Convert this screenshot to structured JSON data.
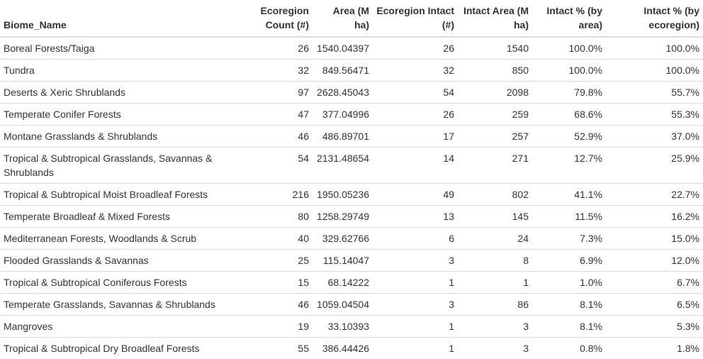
{
  "table": {
    "headers": [
      "Biome_Name",
      "Ecoregion Count (#)",
      "Area (M ha)",
      "Ecoregion Intact (#)",
      "Intact Area (M ha)",
      "Intact % (by area)",
      "Intact % (by ecoregion)"
    ],
    "rows": [
      [
        "Boreal Forests/Taiga",
        "26",
        "1540.04397",
        "26",
        "1540",
        "100.0%",
        "100.0%"
      ],
      [
        "Tundra",
        "32",
        "849.56471",
        "32",
        "850",
        "100.0%",
        "100.0%"
      ],
      [
        "Deserts & Xeric Shrublands",
        "97",
        "2628.45043",
        "54",
        "2098",
        "79.8%",
        "55.7%"
      ],
      [
        "Temperate Conifer Forests",
        "47",
        "377.04996",
        "26",
        "259",
        "68.6%",
        "55.3%"
      ],
      [
        "Montane Grasslands & Shrublands",
        "46",
        "486.89701",
        "17",
        "257",
        "52.9%",
        "37.0%"
      ],
      [
        "Tropical & Subtropical Grasslands, Savannas & Shrublands",
        "54",
        "2131.48654",
        "14",
        "271",
        "12.7%",
        "25.9%"
      ],
      [
        "Tropical & Subtropical Moist Broadleaf Forests",
        "216",
        "1950.05236",
        "49",
        "802",
        "41.1%",
        "22.7%"
      ],
      [
        "Temperate Broadleaf & Mixed Forests",
        "80",
        "1258.29749",
        "13",
        "145",
        "11.5%",
        "16.2%"
      ],
      [
        "Mediterranean Forests, Woodlands & Scrub",
        "40",
        "329.62766",
        "6",
        "24",
        "7.3%",
        "15.0%"
      ],
      [
        "Flooded Grasslands & Savannas",
        "25",
        "115.14047",
        "3",
        "8",
        "6.9%",
        "12.0%"
      ],
      [
        "Tropical & Subtropical Coniferous Forests",
        "15",
        "68.14222",
        "1",
        "1",
        "1.0%",
        "6.7%"
      ],
      [
        "Temperate Grasslands, Savannas & Shrublands",
        "46",
        "1059.04504",
        "3",
        "86",
        "8.1%",
        "6.5%"
      ],
      [
        "Mangroves",
        "19",
        "33.10393",
        "1",
        "3",
        "8.1%",
        "5.3%"
      ],
      [
        "Tropical & Subtropical Dry Broadleaf Forests",
        "55",
        "386.44426",
        "1",
        "3",
        "0.8%",
        "1.8%"
      ]
    ]
  },
  "colors": {
    "text": "#333333",
    "border": "#dddddd",
    "background": "#ffffff"
  }
}
